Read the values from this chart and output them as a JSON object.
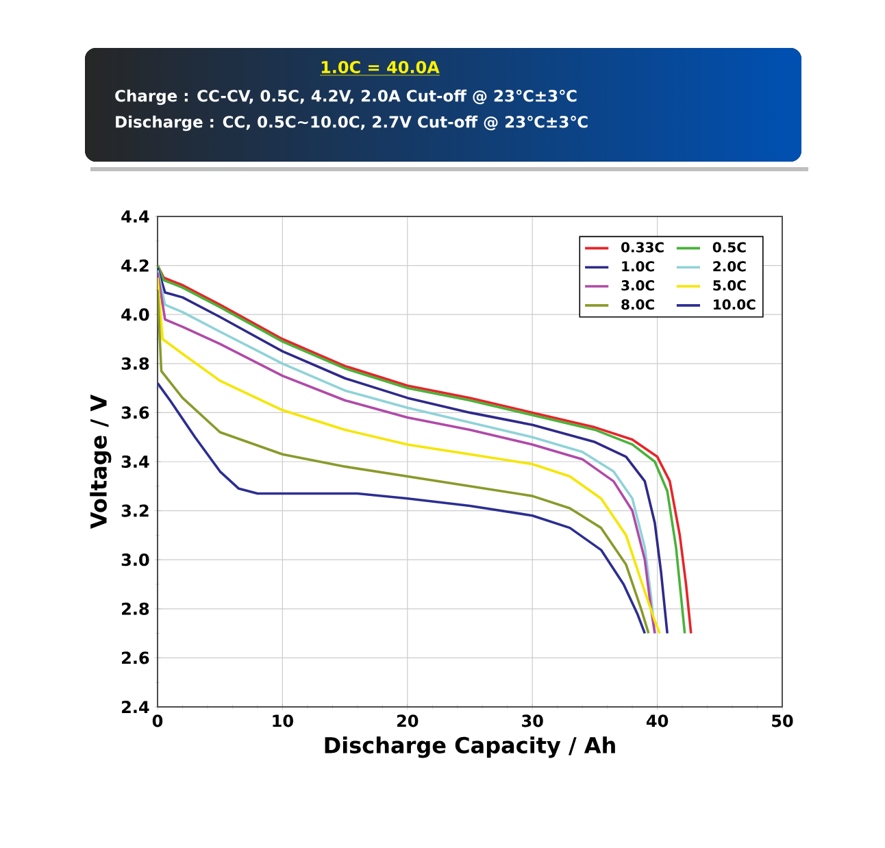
{
  "chart_data": {
    "type": "line",
    "title": "1.0C = 40.0A",
    "annotations": [
      "Charge : CC-CV, 0.5C, 4.2V, 2.0A Cut-off @ 23℃±3℃",
      "Discharge : CC, 0.5C~10.0C, 2.7V Cut-off @ 23℃±3℃"
    ],
    "xlabel": "Discharge Capacity / Ah",
    "ylabel": "Voltage / V",
    "xlim": [
      0,
      50
    ],
    "xticks": [
      0,
      10,
      20,
      30,
      40,
      50
    ],
    "ylim": [
      2.4,
      4.4
    ],
    "yticks": [
      2.4,
      2.6,
      2.8,
      {
        "value": 3,
        "label": "3.0"
      },
      3.2,
      3.4,
      3.6,
      3.8,
      {
        "value": 4,
        "label": "4.0"
      },
      4.2,
      4.4
    ],
    "grid": true,
    "legend": "top right",
    "marker": "none",
    "line_style": "solid",
    "series": [
      {
        "name": "0.33C",
        "color": "#e8242a",
        "x": [
          0,
          0.5,
          2,
          5,
          10,
          15,
          20,
          25,
          30,
          35,
          38,
          40,
          41,
          41.8,
          42.3,
          42.7
        ],
        "values": [
          4.2,
          4.15,
          4.12,
          4.04,
          3.9,
          3.79,
          3.71,
          3.66,
          3.6,
          3.54,
          3.49,
          3.42,
          3.32,
          3.1,
          2.9,
          2.7
        ]
      },
      {
        "name": "0.5C",
        "color": "#4ab23a",
        "x": [
          0,
          0.5,
          2,
          5,
          10,
          15,
          20,
          25,
          30,
          35,
          38,
          39.8,
          40.8,
          41.5,
          41.9,
          42.2
        ],
        "values": [
          4.2,
          4.14,
          4.11,
          4.03,
          3.89,
          3.78,
          3.7,
          3.65,
          3.59,
          3.53,
          3.47,
          3.4,
          3.28,
          3.05,
          2.85,
          2.7
        ]
      },
      {
        "name": "1.0C",
        "color": "#2e2a8a",
        "x": [
          0,
          0.6,
          2,
          5,
          10,
          15,
          20,
          25,
          30,
          35,
          37.5,
          39,
          39.8,
          40.3,
          40.8
        ],
        "values": [
          4.19,
          4.09,
          4.07,
          3.99,
          3.85,
          3.74,
          3.66,
          3.6,
          3.55,
          3.48,
          3.42,
          3.32,
          3.15,
          2.95,
          2.7
        ]
      },
      {
        "name": "2.0C",
        "color": "#8fd3d8",
        "x": [
          0,
          0.6,
          2,
          5,
          10,
          15,
          20,
          25,
          30,
          34,
          36.5,
          38,
          39,
          39.5,
          39.8
        ],
        "values": [
          4.18,
          4.04,
          4.01,
          3.93,
          3.8,
          3.69,
          3.62,
          3.56,
          3.5,
          3.44,
          3.36,
          3.25,
          3.05,
          2.85,
          2.7
        ]
      },
      {
        "name": "3.0C",
        "color": "#b04aa8",
        "x": [
          0,
          0.6,
          2,
          5,
          10,
          15,
          20,
          25,
          30,
          34,
          36.5,
          38,
          39,
          39.5,
          39.8
        ],
        "values": [
          4.17,
          3.98,
          3.95,
          3.88,
          3.75,
          3.65,
          3.58,
          3.53,
          3.47,
          3.41,
          3.32,
          3.2,
          3.0,
          2.8,
          2.7
        ]
      },
      {
        "name": "5.0C",
        "color": "#f5e600",
        "x": [
          0,
          0.4,
          2,
          5,
          10,
          15,
          20,
          25,
          30,
          33,
          35.5,
          37.5,
          38.8,
          39.8,
          40.2
        ],
        "values": [
          4.15,
          3.9,
          3.84,
          3.73,
          3.61,
          3.53,
          3.47,
          3.43,
          3.39,
          3.34,
          3.25,
          3.1,
          2.9,
          2.75,
          2.7
        ]
      },
      {
        "name": "8.0C",
        "color": "#8a9a2a",
        "x": [
          0,
          0.3,
          2,
          5,
          10,
          15,
          20,
          25,
          30,
          33,
          35.5,
          37.5,
          38.7,
          39.3
        ],
        "values": [
          4.1,
          3.77,
          3.66,
          3.52,
          3.43,
          3.38,
          3.34,
          3.3,
          3.26,
          3.21,
          3.13,
          2.98,
          2.8,
          2.7
        ]
      },
      {
        "name": "10.0C",
        "color": "#2c2e92",
        "x": [
          0,
          1,
          3,
          5,
          6.5,
          8,
          12,
          16,
          20,
          25,
          30,
          33,
          35.5,
          37.3,
          38.4,
          39
        ],
        "values": [
          3.72,
          3.65,
          3.5,
          3.36,
          3.29,
          3.27,
          3.27,
          3.27,
          3.25,
          3.22,
          3.18,
          3.13,
          3.04,
          2.9,
          2.78,
          2.7
        ]
      }
    ]
  }
}
